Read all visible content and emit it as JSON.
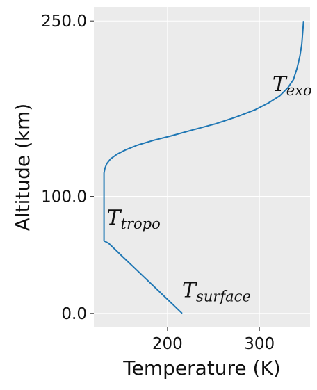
{
  "chart_data": {
    "type": "line",
    "xlabel": "Temperature (K)",
    "ylabel": "Altitude (km)",
    "xlim": [
      120,
      355
    ],
    "ylim": [
      -12,
      262
    ],
    "x_ticks": [
      200,
      300
    ],
    "x_tick_labels": [
      "200",
      "300"
    ],
    "y_ticks": [
      0,
      100,
      250
    ],
    "y_tick_labels": [
      "0.0",
      "100.0",
      "250.0"
    ],
    "grid": true,
    "series": [
      {
        "color": "#1f77b4",
        "x": [
          216,
          208,
          200,
          192,
          184,
          176,
          168,
          160,
          152,
          144,
          136,
          131,
          131,
          131,
          131,
          131,
          131,
          131,
          131,
          132,
          134,
          138,
          145,
          155,
          168,
          185,
          205,
          228,
          252,
          275,
          295,
          310,
          322,
          331,
          337,
          341,
          344,
          346,
          347,
          348
        ],
        "y": [
          0,
          6,
          12,
          18,
          24,
          30,
          36,
          42,
          48,
          54,
          60,
          62,
          70,
          80,
          90,
          100,
          110,
          115,
          120,
          124,
          128,
          132,
          136,
          140,
          144,
          148,
          152,
          157,
          162,
          168,
          174,
          180,
          186,
          193,
          200,
          210,
          220,
          230,
          240,
          250
        ]
      }
    ],
    "annotations": [
      {
        "base": "T",
        "sub": "exo",
        "x": 314,
        "y": 190
      },
      {
        "base": "T",
        "sub": "tropo",
        "x": 134,
        "y": 76
      },
      {
        "base": "T",
        "sub": "surface",
        "x": 216,
        "y": 14
      }
    ]
  },
  "style": {
    "plot_bg": "#ebebeb",
    "grid_color": "#ffffff",
    "line_color": "#1f77b4"
  }
}
